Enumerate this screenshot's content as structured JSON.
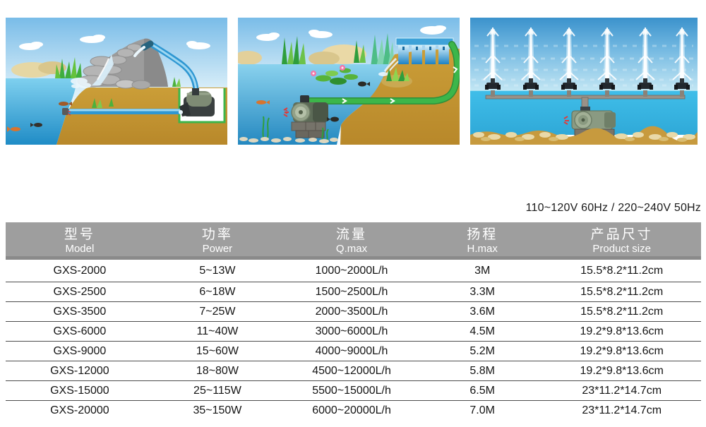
{
  "voltage_note": "110~120V 60Hz / 220~240V 50Hz",
  "illustrations": [
    {
      "name": "waterfall-pump-scene"
    },
    {
      "name": "pond-filter-pump-scene"
    },
    {
      "name": "fountain-manifold-pump-scene"
    }
  ],
  "spec_table": {
    "columns": [
      {
        "zh": "型号",
        "en": "Model"
      },
      {
        "zh": "功率",
        "en": "Power"
      },
      {
        "zh": "流量",
        "en": "Q.max"
      },
      {
        "zh": "扬程",
        "en": "H.max"
      },
      {
        "zh": "产品尺寸",
        "en": "Product size"
      }
    ],
    "rows": [
      [
        "GXS-2000",
        "5~13W",
        "1000~2000L/h",
        "3M",
        "15.5*8.2*11.2cm"
      ],
      [
        "GXS-2500",
        "6~18W",
        "1500~2500L/h",
        "3.3M",
        "15.5*8.2*11.2cm"
      ],
      [
        "GXS-3500",
        "7~25W",
        "2000~3500L/h",
        "3.6M",
        "15.5*8.2*11.2cm"
      ],
      [
        "GXS-6000",
        "11~40W",
        "3000~6000L/h",
        "4.5M",
        "19.2*9.8*13.6cm"
      ],
      [
        "GXS-9000",
        "15~60W",
        "4000~9000L/h",
        "5.2M",
        "19.2*9.8*13.6cm"
      ],
      [
        "GXS-12000",
        "18~80W",
        "4500~12000L/h",
        "5.8M",
        "19.2*9.8*13.6cm"
      ],
      [
        "GXS-15000",
        "25~115W",
        "5500~15000L/h",
        "6.5M",
        "23*11.2*14.7cm"
      ],
      [
        "GXS-20000",
        "35~150W",
        "6000~20000L/h",
        "7.0M",
        "23*11.2*14.7cm"
      ]
    ]
  },
  "colors": {
    "header_bg": "#9e9e9e",
    "header_bg_dark": "#8a8a8a",
    "row_line": "#4c4c4c",
    "text": "#141414",
    "hose_green": "#3cb64a",
    "pipe_blue": "#2f97d2",
    "ground_tan": "#c2952d",
    "water_blue": "#2e97cc"
  }
}
